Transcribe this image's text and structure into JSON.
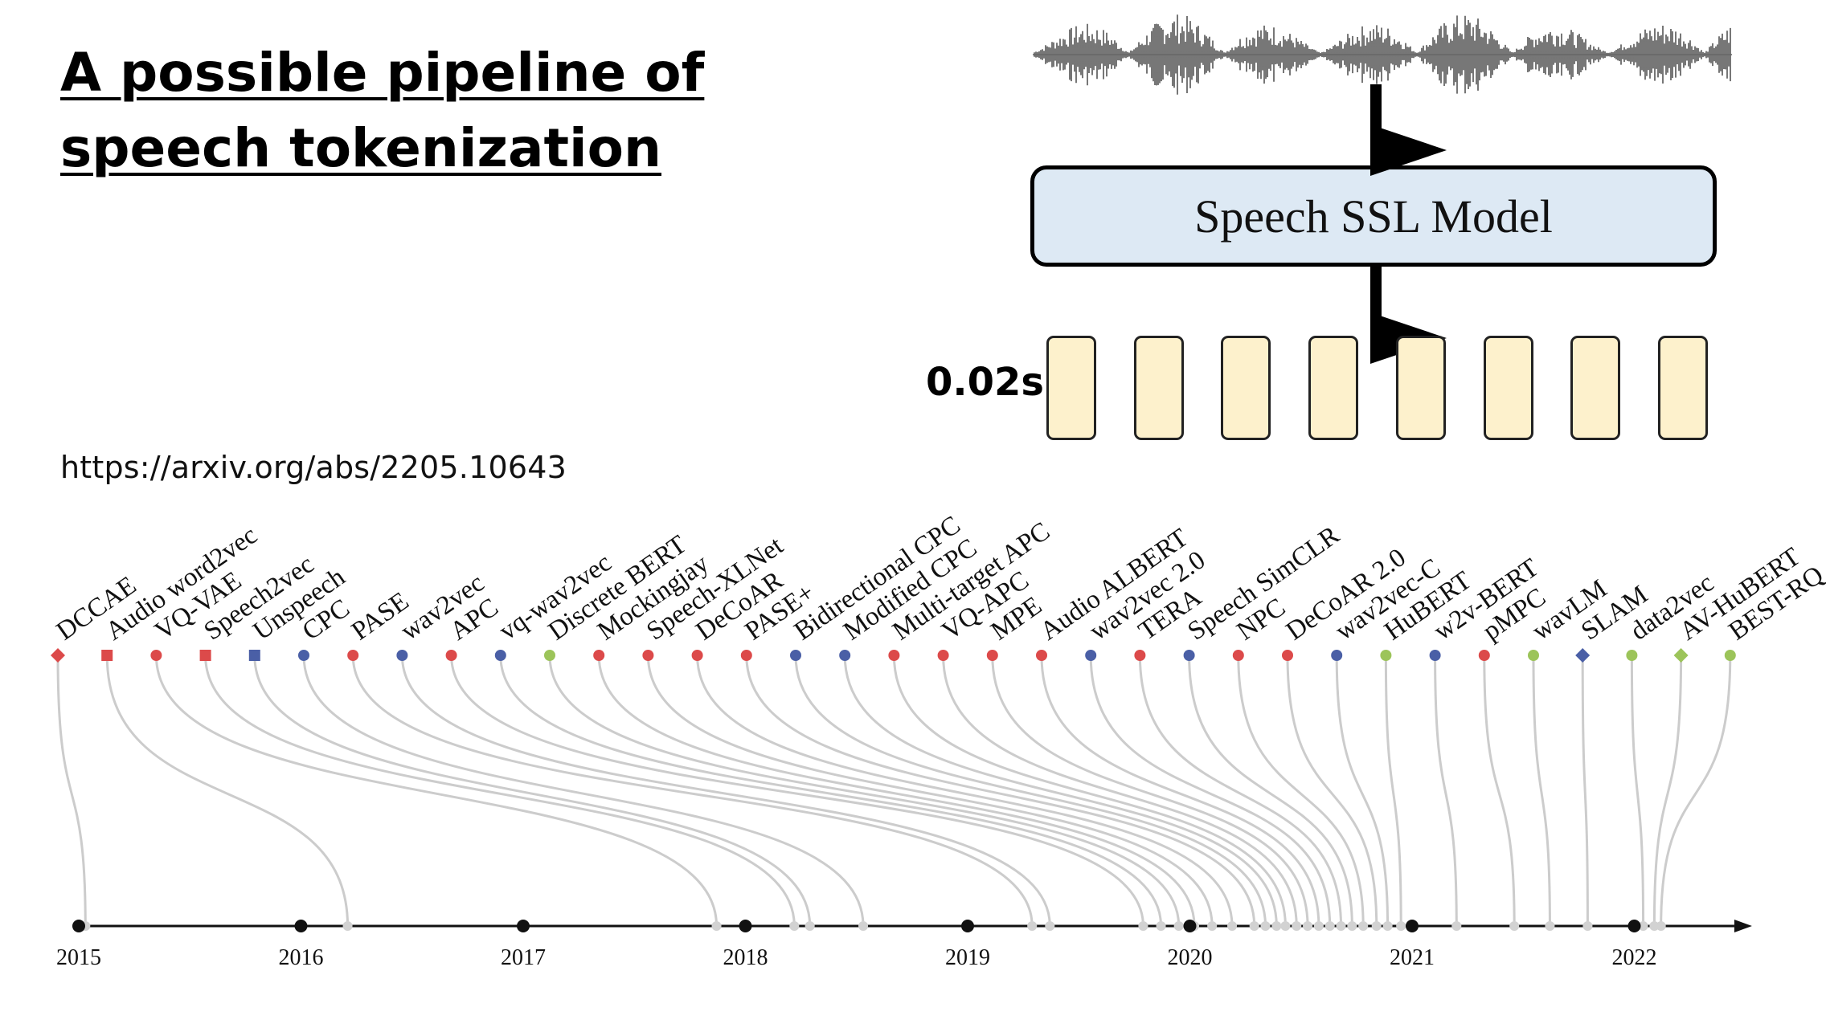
{
  "title_lines": [
    "A possible pipeline of",
    "speech tokenization"
  ],
  "url": "https://arxiv.org/abs/2205.10643",
  "ssl_model_label": "Speech SSL Model",
  "frame_duration": "0.02s",
  "token_count": 8,
  "colors": {
    "ssl_box_fill": "#dde9f4",
    "token_fill": "#fdf1cc",
    "generative": "#dc4a4a",
    "contrastive": "#4a5fa6",
    "predictive": "#9cc45a",
    "timeline_curve": "#cccccc"
  },
  "chart_data": {
    "type": "timeline",
    "years": [
      "2015",
      "2016",
      "2017",
      "2018",
      "2019",
      "2020",
      "2021",
      "2022"
    ],
    "models": [
      {
        "name": "DCCAE",
        "date": 2015.03,
        "category": "generative",
        "shape": "diamond"
      },
      {
        "name": "Audio word2vec",
        "date": 2016.21,
        "category": "generative",
        "shape": "square"
      },
      {
        "name": "VQ-VAE",
        "date": 2017.87,
        "category": "generative",
        "shape": "circle"
      },
      {
        "name": "Speech2vec",
        "date": 2018.22,
        "category": "generative",
        "shape": "square"
      },
      {
        "name": "Unspeech",
        "date": 2018.29,
        "category": "contrastive",
        "shape": "square"
      },
      {
        "name": "CPC",
        "date": 2018.53,
        "category": "contrastive",
        "shape": "circle"
      },
      {
        "name": "PASE",
        "date": 2019.29,
        "category": "generative",
        "shape": "circle"
      },
      {
        "name": "wav2vec",
        "date": 2019.37,
        "category": "contrastive",
        "shape": "circle"
      },
      {
        "name": "APC",
        "date": 2019.79,
        "category": "generative",
        "shape": "circle"
      },
      {
        "name": "vq-wav2vec",
        "date": 2019.87,
        "category": "contrastive",
        "shape": "circle"
      },
      {
        "name": "Discrete BERT",
        "date": 2019.95,
        "category": "predictive",
        "shape": "circle"
      },
      {
        "name": "Mockingjay",
        "date": 2020.02,
        "category": "generative",
        "shape": "circle"
      },
      {
        "name": "Speech-XLNet",
        "date": 2020.1,
        "category": "generative",
        "shape": "circle"
      },
      {
        "name": "DeCoAR",
        "date": 2020.19,
        "category": "generative",
        "shape": "circle"
      },
      {
        "name": "PASE+",
        "date": 2020.29,
        "category": "generative",
        "shape": "circle"
      },
      {
        "name": "Bidirectional CPC",
        "date": 2020.34,
        "category": "contrastive",
        "shape": "circle"
      },
      {
        "name": "Modified CPC",
        "date": 2020.39,
        "category": "contrastive",
        "shape": "circle"
      },
      {
        "name": "Multi-target APC",
        "date": 2020.43,
        "category": "generative",
        "shape": "circle"
      },
      {
        "name": "VQ-APC",
        "date": 2020.48,
        "category": "generative",
        "shape": "circle"
      },
      {
        "name": "MPE",
        "date": 2020.53,
        "category": "generative",
        "shape": "circle"
      },
      {
        "name": "Audio ALBERT",
        "date": 2020.58,
        "category": "generative",
        "shape": "circle"
      },
      {
        "name": "wav2vec 2.0",
        "date": 2020.63,
        "category": "contrastive",
        "shape": "circle"
      },
      {
        "name": "TERA",
        "date": 2020.68,
        "category": "generative",
        "shape": "circle"
      },
      {
        "name": "Speech SimCLR",
        "date": 2020.73,
        "category": "contrastive",
        "shape": "circle"
      },
      {
        "name": "NPC",
        "date": 2020.78,
        "category": "generative",
        "shape": "circle"
      },
      {
        "name": "DeCoAR 2.0",
        "date": 2020.84,
        "category": "generative",
        "shape": "circle"
      },
      {
        "name": "wav2vec-C",
        "date": 2020.89,
        "category": "contrastive",
        "shape": "circle"
      },
      {
        "name": "HuBERT",
        "date": 2020.95,
        "category": "predictive",
        "shape": "circle"
      },
      {
        "name": "w2v-BERT",
        "date": 2021.2,
        "category": "contrastive",
        "shape": "circle"
      },
      {
        "name": "pMPC",
        "date": 2021.46,
        "category": "generative",
        "shape": "circle"
      },
      {
        "name": "wavLM",
        "date": 2021.62,
        "category": "predictive",
        "shape": "circle"
      },
      {
        "name": "SLAM",
        "date": 2021.79,
        "category": "contrastive",
        "shape": "diamond"
      },
      {
        "name": "data2vec",
        "date": 2022.04,
        "category": "predictive",
        "shape": "circle"
      },
      {
        "name": "AV-HuBERT",
        "date": 2022.09,
        "category": "predictive",
        "shape": "diamond"
      },
      {
        "name": "BEST-RQ",
        "date": 2022.12,
        "category": "predictive",
        "shape": "circle"
      }
    ]
  }
}
